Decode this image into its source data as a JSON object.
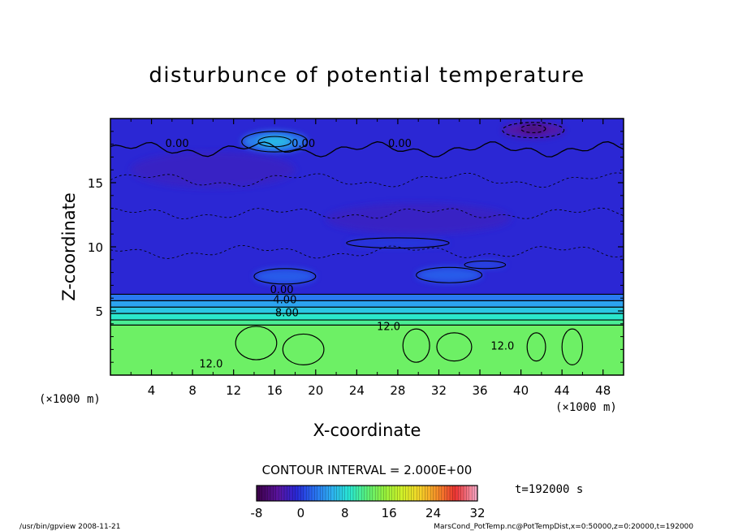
{
  "chart_data": {
    "type": "heatmap",
    "title": "disturbunce of potential temperature",
    "xlabel": "X-coordinate",
    "ylabel": "Z-coordinate",
    "x_unit_left": "(×1000 m)",
    "x_unit_right": "(×1000 m)",
    "xlim": [
      0,
      50
    ],
    "ylim": [
      0,
      20
    ],
    "x_ticks": [
      4,
      8,
      12,
      16,
      20,
      24,
      28,
      32,
      36,
      40,
      44,
      48
    ],
    "y_ticks": [
      5,
      10,
      15
    ],
    "contour_interval_text": "CONTOUR INTERVAL = 2.000E+00",
    "time_text": "t=192000 s",
    "colorbar": {
      "min": -8,
      "max": 32,
      "ticks": [
        -8,
        0,
        8,
        16,
        24,
        32
      ]
    },
    "contour_labels": [
      {
        "text": "0.00",
        "x": 6.5,
        "z": 17.8
      },
      {
        "text": "0.00",
        "x": 18.8,
        "z": 17.8
      },
      {
        "text": "0.00",
        "x": 28.2,
        "z": 17.8
      },
      {
        "text": "0.00",
        "x": 16.7,
        "z": 6.4
      },
      {
        "text": "4.00",
        "x": 17.0,
        "z": 5.6
      },
      {
        "text": "8.00",
        "x": 17.2,
        "z": 4.6
      },
      {
        "text": "12.0",
        "x": 27.1,
        "z": 3.5
      },
      {
        "text": "12.0",
        "x": 38.2,
        "z": 2.0
      },
      {
        "text": "12.0",
        "x": 9.8,
        "z": 0.6
      }
    ],
    "bands": [
      {
        "z0": 0,
        "z1": 3.9,
        "value": 13
      },
      {
        "z0": 3.9,
        "z1": 4.3,
        "value": 11
      },
      {
        "z0": 4.3,
        "z1": 4.8,
        "value": 9
      },
      {
        "z0": 4.8,
        "z1": 5.3,
        "value": 7
      },
      {
        "z0": 5.3,
        "z1": 5.8,
        "value": 5
      },
      {
        "z0": 5.8,
        "z1": 6.3,
        "value": 3
      },
      {
        "z0": 6.3,
        "z1": 20,
        "value": -1
      }
    ],
    "blobs": [
      {
        "x": 16.0,
        "z": 18.2,
        "rx": 3.2,
        "rz": 0.8,
        "value": 4
      },
      {
        "x": 16.0,
        "z": 18.2,
        "rx": 1.6,
        "rz": 0.4,
        "value": 7
      },
      {
        "x": 41.2,
        "z": 19.1,
        "rx": 3.0,
        "rz": 0.6,
        "value": -4
      },
      {
        "x": 41.2,
        "z": 19.2,
        "rx": 1.2,
        "rz": 0.3,
        "value": -6
      },
      {
        "x": 17.0,
        "z": 7.7,
        "rx": 3.0,
        "rz": 0.6,
        "value": 2
      },
      {
        "x": 33.0,
        "z": 7.8,
        "rx": 3.2,
        "rz": 0.6,
        "value": 2
      },
      {
        "x": 36.5,
        "z": 8.6,
        "rx": 2.0,
        "rz": 0.3,
        "value": 1
      },
      {
        "x": 28.0,
        "z": 10.3,
        "rx": 5.0,
        "rz": 0.4,
        "value": 0
      },
      {
        "x": 10.0,
        "z": 16.0,
        "rx": 8.0,
        "rz": 1.4,
        "value": -2
      },
      {
        "x": 30.0,
        "z": 12.2,
        "rx": 9.0,
        "rz": 1.2,
        "value": -2
      }
    ],
    "green_loops": [
      {
        "x": 14.2,
        "z": 2.5,
        "rx": 2.0,
        "rz": 1.3
      },
      {
        "x": 18.8,
        "z": 2.0,
        "rx": 2.0,
        "rz": 1.2
      },
      {
        "x": 29.8,
        "z": 2.3,
        "rx": 1.3,
        "rz": 1.3
      },
      {
        "x": 33.5,
        "z": 2.2,
        "rx": 1.7,
        "rz": 1.1
      },
      {
        "x": 41.5,
        "z": 2.2,
        "rx": 0.9,
        "rz": 1.1
      },
      {
        "x": 45.0,
        "z": 2.2,
        "rx": 1.0,
        "rz": 1.4
      }
    ]
  },
  "footer": {
    "program": "/usr/bin/gpview   2008-11-21",
    "source": "MarsCond_PotTemp.nc@PotTempDist,x=0:50000,z=0:20000,t=192000"
  }
}
